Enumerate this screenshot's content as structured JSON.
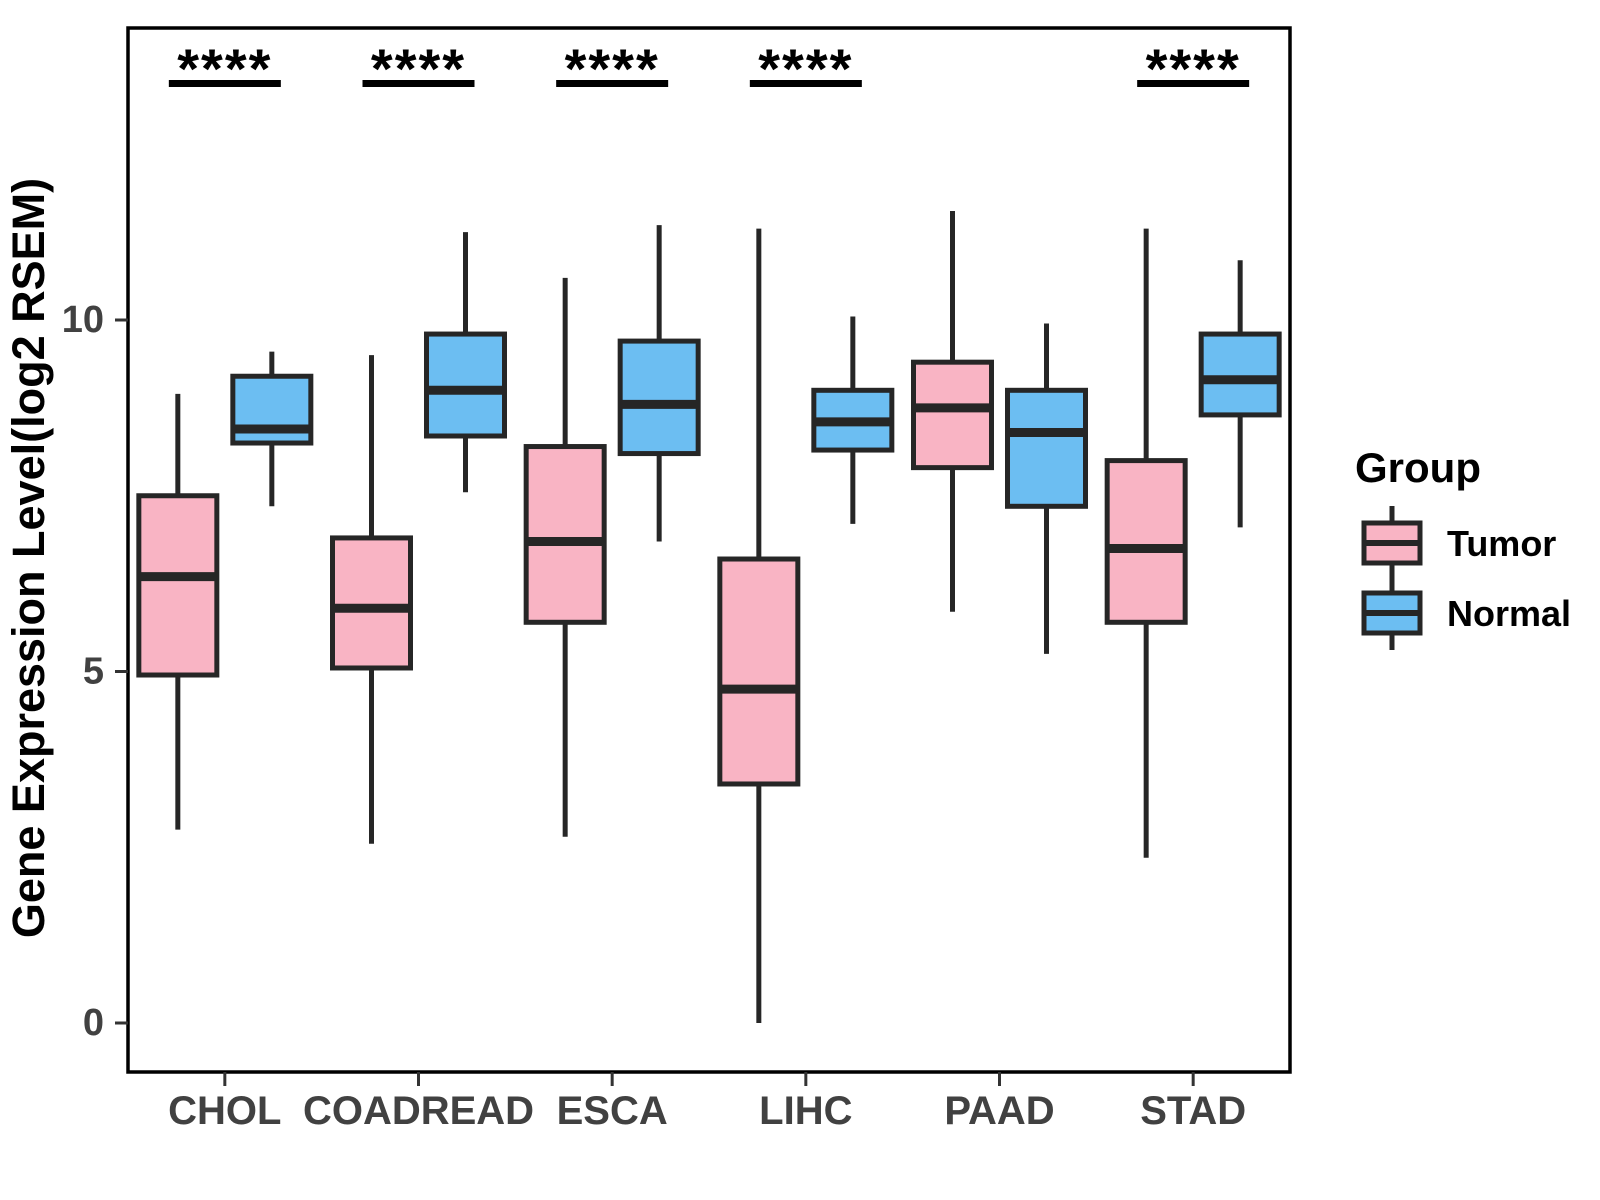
{
  "page": {
    "background": "#ffffff"
  },
  "figure": {
    "y_axis": {
      "title": "Gene Expression Level(log2 RSEM)",
      "tick_labels": [
        "0",
        "5",
        "10"
      ]
    },
    "x_axis": {
      "tick_labels": [
        "CHOL",
        "COADREAD",
        "ESCA",
        "LIHC",
        "PAAD",
        "STAD"
      ]
    },
    "legend": {
      "title": "Group",
      "items": [
        {
          "label": "Tumor",
          "color": "#F9B4C4"
        },
        {
          "label": "Normal",
          "color": "#6CBEF2"
        }
      ]
    },
    "colors": {
      "box_stroke": "#262626",
      "panel_border": "#000000",
      "axis_text": "#414141",
      "significance": "#000000"
    }
  },
  "chart_data": {
    "type": "boxplot",
    "orientation": "vertical",
    "title": "",
    "xlabel": "",
    "ylabel": "Gene Expression Level(log2 RSEM)",
    "categories": [
      "CHOL",
      "COADREAD",
      "ESCA",
      "LIHC",
      "PAAD",
      "STAD"
    ],
    "groups": [
      "Tumor",
      "Normal"
    ],
    "yticks": [
      0,
      5,
      10
    ],
    "ylim": [
      -0.7,
      14.2
    ],
    "grid": false,
    "legend_position": "right",
    "series": [
      {
        "name": "Tumor",
        "color": "#F9B4C4",
        "stats": [
          {
            "category": "CHOL",
            "min": 2.75,
            "q1": 4.95,
            "median": 6.35,
            "q3": 7.5,
            "max": 8.95
          },
          {
            "category": "COADREAD",
            "min": 2.55,
            "q1": 5.05,
            "median": 5.9,
            "q3": 6.9,
            "max": 9.5
          },
          {
            "category": "ESCA",
            "min": 2.65,
            "q1": 5.7,
            "median": 6.85,
            "q3": 8.2,
            "max": 10.6
          },
          {
            "category": "LIHC",
            "min": 0.0,
            "q1": 3.4,
            "median": 4.75,
            "q3": 6.6,
            "max": 11.3
          },
          {
            "category": "PAAD",
            "min": 5.85,
            "q1": 7.9,
            "median": 8.75,
            "q3": 9.4,
            "max": 11.55
          },
          {
            "category": "STAD",
            "min": 2.35,
            "q1": 5.7,
            "median": 6.75,
            "q3": 8.0,
            "max": 11.3
          }
        ]
      },
      {
        "name": "Normal",
        "color": "#6CBEF2",
        "stats": [
          {
            "category": "CHOL",
            "min": 7.35,
            "q1": 8.25,
            "median": 8.45,
            "q3": 9.2,
            "max": 9.55
          },
          {
            "category": "COADREAD",
            "min": 7.55,
            "q1": 8.35,
            "median": 9.0,
            "q3": 9.8,
            "max": 11.25
          },
          {
            "category": "ESCA",
            "min": 6.85,
            "q1": 8.1,
            "median": 8.8,
            "q3": 9.7,
            "max": 11.35
          },
          {
            "category": "LIHC",
            "min": 7.1,
            "q1": 8.15,
            "median": 8.55,
            "q3": 9.0,
            "max": 10.05
          },
          {
            "category": "PAAD",
            "min": 5.25,
            "q1": 7.35,
            "median": 8.4,
            "q3": 9.0,
            "max": 9.95
          },
          {
            "category": "STAD",
            "min": 7.05,
            "q1": 8.65,
            "median": 9.15,
            "q3": 9.8,
            "max": 10.85
          }
        ]
      }
    ],
    "significance": [
      {
        "category": "CHOL",
        "label": "****"
      },
      {
        "category": "COADREAD",
        "label": "****"
      },
      {
        "category": "ESCA",
        "label": "****"
      },
      {
        "category": "LIHC",
        "label": "****"
      },
      {
        "category": "PAAD",
        "label": null
      },
      {
        "category": "STAD",
        "label": "****"
      }
    ]
  }
}
